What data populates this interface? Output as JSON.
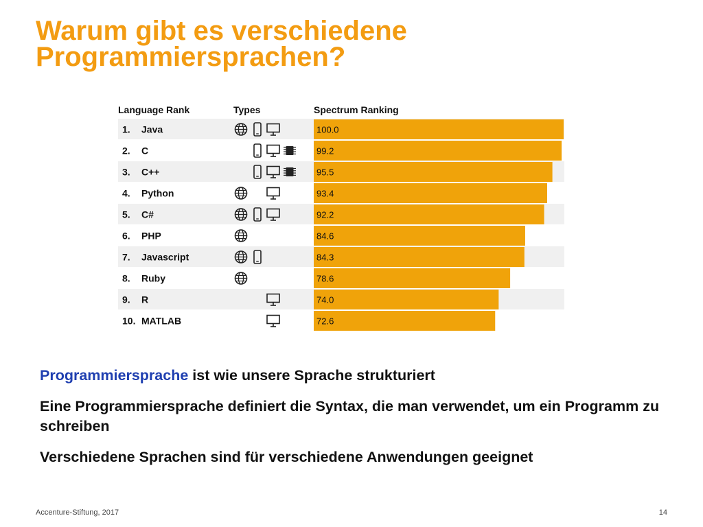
{
  "slide": {
    "title_line1": "Warum gibt es verschiedene",
    "title_line2": "Programmiersprachen?",
    "bullets": {
      "b1_highlight": "Programmiersprache",
      "b1_rest": " ist wie unsere Sprache strukturiert",
      "b2": "Eine Programmiersprache definiert die Syntax, die man verwendet, um ein Programm zu schreiben",
      "b3": "Verschiedene Sprachen sind für verschiedene Anwendungen geeignet"
    },
    "footer_left": "Accenture-Stiftung, 2017",
    "page_number": "14"
  },
  "colors": {
    "title": "#f39c12",
    "bar": "#f0a30a",
    "row_stripe": "#f0f0f0",
    "accent_text": "#1f3fb0"
  },
  "chart_data": {
    "type": "bar",
    "orientation": "horizontal",
    "headers": {
      "rank": "Language Rank",
      "types": "Types",
      "score": "Spectrum Ranking"
    },
    "xlim": [
      0,
      100
    ],
    "rows": [
      {
        "rank": "1.",
        "language": "Java",
        "value": 100.0,
        "label": "100.0",
        "types": [
          "web-icon",
          "mobile-icon",
          "desktop-icon"
        ]
      },
      {
        "rank": "2.",
        "language": "C",
        "value": 99.2,
        "label": "99.2",
        "types": [
          "mobile-icon",
          "desktop-icon",
          "embedded-icon"
        ]
      },
      {
        "rank": "3.",
        "language": "C++",
        "value": 95.5,
        "label": "95.5",
        "types": [
          "mobile-icon",
          "desktop-icon",
          "embedded-icon"
        ]
      },
      {
        "rank": "4.",
        "language": "Python",
        "value": 93.4,
        "label": "93.4",
        "types": [
          "web-icon",
          "desktop-icon"
        ]
      },
      {
        "rank": "5.",
        "language": "C#",
        "value": 92.2,
        "label": "92.2",
        "types": [
          "web-icon",
          "mobile-icon",
          "desktop-icon"
        ]
      },
      {
        "rank": "6.",
        "language": "PHP",
        "value": 84.6,
        "label": "84.6",
        "types": [
          "web-icon"
        ]
      },
      {
        "rank": "7.",
        "language": "Javascript",
        "value": 84.3,
        "label": "84.3",
        "types": [
          "web-icon",
          "mobile-icon"
        ]
      },
      {
        "rank": "8.",
        "language": "Ruby",
        "value": 78.6,
        "label": "78.6",
        "types": [
          "web-icon"
        ]
      },
      {
        "rank": "9.",
        "language": "R",
        "value": 74.0,
        "label": "74.0",
        "types": [
          "desktop-icon"
        ]
      },
      {
        "rank": "10.",
        "language": "MATLAB",
        "value": 72.6,
        "label": "72.6",
        "types": [
          "desktop-icon"
        ]
      }
    ]
  }
}
